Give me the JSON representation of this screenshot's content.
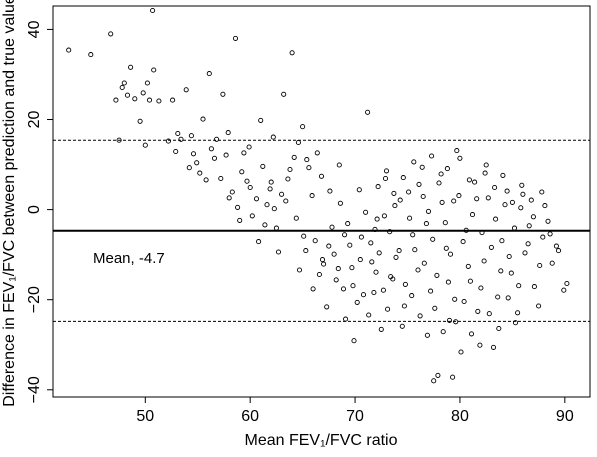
{
  "chart_data": {
    "type": "scatter",
    "title": "",
    "xlabel": "Mean FEV₁/FVC ratio",
    "ylabel": "Difference in FEV₁/FVC between prediction and true value",
    "xlim": [
      41.2,
      92.4
    ],
    "ylim": [
      -41.6,
      45.2
    ],
    "x_ticks": [
      "50",
      "60",
      "70",
      "80",
      "90"
    ],
    "y_ticks": [
      "40",
      "20",
      "0",
      "−20",
      "−40"
    ],
    "x_tick_values": [
      50,
      60,
      70,
      80,
      90
    ],
    "y_tick_values": [
      40,
      20,
      0,
      -20,
      -40
    ],
    "reference_lines": [
      {
        "y": -4.7,
        "style": "solid",
        "label": "Mean, -4.7"
      },
      {
        "y": 15.4,
        "style": "dashed"
      },
      {
        "y": -24.8,
        "style": "dashed"
      }
    ],
    "grid": false,
    "legend": "none",
    "marker": "open-circle",
    "colors": {
      "points": "#000000",
      "lines": "#000000",
      "background": "#ffffff"
    },
    "points": [
      {
        "x": 42.7,
        "y": 35.4
      },
      {
        "x": 44.8,
        "y": 34.4
      },
      {
        "x": 46.7,
        "y": 39.0
      },
      {
        "x": 47.2,
        "y": 24.3
      },
      {
        "x": 47.5,
        "y": 15.4
      },
      {
        "x": 47.8,
        "y": 27.1
      },
      {
        "x": 48.0,
        "y": 28.1
      },
      {
        "x": 48.3,
        "y": 25.4
      },
      {
        "x": 48.6,
        "y": 31.6
      },
      {
        "x": 49.0,
        "y": 24.6
      },
      {
        "x": 49.5,
        "y": 19.6
      },
      {
        "x": 49.8,
        "y": 25.9
      },
      {
        "x": 50.0,
        "y": 14.3
      },
      {
        "x": 50.2,
        "y": 28.1
      },
      {
        "x": 50.4,
        "y": 24.3
      },
      {
        "x": 50.7,
        "y": 44.2
      },
      {
        "x": 50.8,
        "y": 31.0
      },
      {
        "x": 51.3,
        "y": 24.1
      },
      {
        "x": 52.2,
        "y": 15.2
      },
      {
        "x": 52.6,
        "y": 24.3
      },
      {
        "x": 53.1,
        "y": 16.9
      },
      {
        "x": 53.4,
        "y": 15.6
      },
      {
        "x": 53.9,
        "y": 26.6
      },
      {
        "x": 54.2,
        "y": 9.3
      },
      {
        "x": 54.6,
        "y": 12.4
      },
      {
        "x": 54.9,
        "y": 10.4
      },
      {
        "x": 55.5,
        "y": 20.1
      },
      {
        "x": 55.8,
        "y": 6.6
      },
      {
        "x": 56.1,
        "y": 30.2
      },
      {
        "x": 56.3,
        "y": 13.5
      },
      {
        "x": 56.8,
        "y": 15.6
      },
      {
        "x": 57.4,
        "y": 25.6
      },
      {
        "x": 57.7,
        "y": 12.1
      },
      {
        "x": 58.3,
        "y": 3.9
      },
      {
        "x": 58.6,
        "y": 38.0
      },
      {
        "x": 58.8,
        "y": 0.5
      },
      {
        "x": 59.0,
        "y": -2.4
      },
      {
        "x": 59.4,
        "y": 12.6
      },
      {
        "x": 59.7,
        "y": 6.3
      },
      {
        "x": 60.2,
        "y": -1.4
      },
      {
        "x": 60.6,
        "y": 2.4
      },
      {
        "x": 61.0,
        "y": 19.8
      },
      {
        "x": 61.4,
        "y": -3.4
      },
      {
        "x": 61.9,
        "y": 4.6
      },
      {
        "x": 62.3,
        "y": 0.2
      },
      {
        "x": 62.7,
        "y": -9.4
      },
      {
        "x": 63.2,
        "y": 25.6
      },
      {
        "x": 63.6,
        "y": 6.8
      },
      {
        "x": 64.0,
        "y": 34.8
      },
      {
        "x": 64.2,
        "y": 11.6
      },
      {
        "x": 64.7,
        "y": -13.4
      },
      {
        "x": 65.1,
        "y": -5.9
      },
      {
        "x": 65.6,
        "y": 9.3
      },
      {
        "x": 66.0,
        "y": -17.6
      },
      {
        "x": 66.4,
        "y": 12.6
      },
      {
        "x": 66.9,
        "y": -11.1
      },
      {
        "x": 67.3,
        "y": -21.6
      },
      {
        "x": 67.8,
        "y": -3.9
      },
      {
        "x": 68.2,
        "y": -15.6
      },
      {
        "x": 68.6,
        "y": 1.4
      },
      {
        "x": 69.1,
        "y": -24.3
      },
      {
        "x": 69.5,
        "y": -7.9
      },
      {
        "x": 69.9,
        "y": -29.1
      },
      {
        "x": 70.4,
        "y": 4.4
      },
      {
        "x": 70.8,
        "y": -18.9
      },
      {
        "x": 71.2,
        "y": 21.6
      },
      {
        "x": 71.6,
        "y": -11.6
      },
      {
        "x": 72.1,
        "y": -2.1
      },
      {
        "x": 72.5,
        "y": -26.6
      },
      {
        "x": 72.9,
        "y": 6.9
      },
      {
        "x": 73.4,
        "y": -14.9
      },
      {
        "x": 73.8,
        "y": 0.9
      },
      {
        "x": 74.2,
        "y": -9.1
      },
      {
        "x": 74.7,
        "y": -21.4
      },
      {
        "x": 75.1,
        "y": 3.9
      },
      {
        "x": 75.5,
        "y": -5.6
      },
      {
        "x": 76.0,
        "y": -13.4
      },
      {
        "x": 76.4,
        "y": 9.4
      },
      {
        "x": 76.8,
        "y": -3.1
      },
      {
        "x": 77.2,
        "y": -18.1
      },
      {
        "x": 77.5,
        "y": -38.0
      },
      {
        "x": 77.9,
        "y": -36.8
      },
      {
        "x": 78.3,
        "y": 1.6
      },
      {
        "x": 78.7,
        "y": -8.6
      },
      {
        "x": 79.0,
        "y": -24.6
      },
      {
        "x": 79.3,
        "y": -37.2
      },
      {
        "x": 79.7,
        "y": 13.1
      },
      {
        "x": 80.1,
        "y": -31.6
      },
      {
        "x": 80.6,
        "y": -4.6
      },
      {
        "x": 81.0,
        "y": -15.9
      },
      {
        "x": 81.4,
        "y": 6.1
      },
      {
        "x": 81.9,
        "y": -30.1
      },
      {
        "x": 82.3,
        "y": -11.4
      },
      {
        "x": 82.7,
        "y": 2.6
      },
      {
        "x": 83.2,
        "y": -30.6
      },
      {
        "x": 83.6,
        "y": -19.4
      },
      {
        "x": 84.0,
        "y": -6.9
      },
      {
        "x": 84.5,
        "y": 4.1
      },
      {
        "x": 84.9,
        "y": -14.1
      },
      {
        "x": 85.3,
        "y": -25.1
      },
      {
        "x": 85.8,
        "y": 0.4
      },
      {
        "x": 86.2,
        "y": -9.6
      },
      {
        "x": 86.6,
        "y": -3.6
      },
      {
        "x": 87.1,
        "y": -17.1
      },
      {
        "x": 87.5,
        "y": -21.4
      },
      {
        "x": 87.9,
        "y": -6.1
      },
      {
        "x": 88.4,
        "y": -2.6
      },
      {
        "x": 88.8,
        "y": -11.9
      },
      {
        "x": 89.2,
        "y": -8.1
      },
      {
        "x": 89.9,
        "y": -17.9
      },
      {
        "x": 90.2,
        "y": -16.4
      },
      {
        "x": 71.0,
        "y": -0.6
      },
      {
        "x": 71.5,
        "y": -7.4
      },
      {
        "x": 72.0,
        "y": -13.9
      },
      {
        "x": 72.8,
        "y": -1.4
      },
      {
        "x": 73.3,
        "y": -4.9
      },
      {
        "x": 73.9,
        "y": -10.6
      },
      {
        "x": 74.3,
        "y": 2.1
      },
      {
        "x": 74.8,
        "y": -16.6
      },
      {
        "x": 75.2,
        "y": -1.9
      },
      {
        "x": 75.7,
        "y": -8.9
      },
      {
        "x": 76.1,
        "y": 5.6
      },
      {
        "x": 76.6,
        "y": -11.9
      },
      {
        "x": 77.0,
        "y": -0.4
      },
      {
        "x": 77.4,
        "y": -6.6
      },
      {
        "x": 77.8,
        "y": -14.6
      },
      {
        "x": 78.2,
        "y": 7.9
      },
      {
        "x": 78.6,
        "y": -2.9
      },
      {
        "x": 79.1,
        "y": -9.9
      },
      {
        "x": 79.5,
        "y": -19.9
      },
      {
        "x": 79.9,
        "y": 3.1
      },
      {
        "x": 80.3,
        "y": -7.1
      },
      {
        "x": 80.8,
        "y": -12.6
      },
      {
        "x": 81.2,
        "y": -1.1
      },
      {
        "x": 81.7,
        "y": -22.6
      },
      {
        "x": 82.1,
        "y": -5.1
      },
      {
        "x": 82.5,
        "y": 9.9
      },
      {
        "x": 83.0,
        "y": -8.4
      },
      {
        "x": 83.4,
        "y": -2.1
      },
      {
        "x": 83.9,
        "y": -13.6
      },
      {
        "x": 84.3,
        "y": 1.1
      },
      {
        "x": 84.7,
        "y": -10.4
      },
      {
        "x": 85.2,
        "y": -4.1
      },
      {
        "x": 85.6,
        "y": -16.9
      },
      {
        "x": 86.0,
        "y": 3.4
      },
      {
        "x": 86.5,
        "y": -7.6
      },
      {
        "x": 87.0,
        "y": -1.6
      },
      {
        "x": 87.6,
        "y": -12.4
      },
      {
        "x": 88.1,
        "y": 0.9
      },
      {
        "x": 88.6,
        "y": -5.4
      },
      {
        "x": 89.4,
        "y": -9.1
      },
      {
        "x": 66.2,
        "y": -6.9
      },
      {
        "x": 67.0,
        "y": -12.1
      },
      {
        "x": 67.6,
        "y": 4.1
      },
      {
        "x": 68.0,
        "y": -9.9
      },
      {
        "x": 68.9,
        "y": -17.6
      },
      {
        "x": 69.3,
        "y": -3.1
      },
      {
        "x": 69.7,
        "y": -12.9
      },
      {
        "x": 70.2,
        "y": -20.6
      },
      {
        "x": 70.6,
        "y": -6.1
      },
      {
        "x": 71.8,
        "y": -18.4
      },
      {
        "x": 72.3,
        "y": -9.6
      },
      {
        "x": 73.1,
        "y": -22.1
      },
      {
        "x": 73.6,
        "y": -15.4
      },
      {
        "x": 74.5,
        "y": -25.9
      },
      {
        "x": 75.4,
        "y": -19.1
      },
      {
        "x": 76.2,
        "y": -23.6
      },
      {
        "x": 76.9,
        "y": -27.9
      },
      {
        "x": 77.6,
        "y": -21.9
      },
      {
        "x": 78.4,
        "y": -27.1
      },
      {
        "x": 78.9,
        "y": -16.1
      },
      {
        "x": 79.6,
        "y": -24.9
      },
      {
        "x": 80.4,
        "y": -20.4
      },
      {
        "x": 81.1,
        "y": -27.6
      },
      {
        "x": 82.0,
        "y": -17.4
      },
      {
        "x": 82.8,
        "y": -23.1
      },
      {
        "x": 83.7,
        "y": -26.4
      },
      {
        "x": 84.6,
        "y": -19.6
      },
      {
        "x": 85.5,
        "y": -22.9
      },
      {
        "x": 72.2,
        "y": 5.1
      },
      {
        "x": 73.0,
        "y": 8.6
      },
      {
        "x": 73.7,
        "y": 3.6
      },
      {
        "x": 74.6,
        "y": 7.1
      },
      {
        "x": 75.6,
        "y": 10.6
      },
      {
        "x": 76.5,
        "y": 2.9
      },
      {
        "x": 77.3,
        "y": 11.9
      },
      {
        "x": 78.0,
        "y": 5.9
      },
      {
        "x": 78.8,
        "y": 9.1
      },
      {
        "x": 79.4,
        "y": 1.9
      },
      {
        "x": 80.0,
        "y": 11.4
      },
      {
        "x": 80.9,
        "y": 6.6
      },
      {
        "x": 81.6,
        "y": 2.4
      },
      {
        "x": 82.4,
        "y": 8.1
      },
      {
        "x": 83.3,
        "y": 4.9
      },
      {
        "x": 84.1,
        "y": 7.6
      },
      {
        "x": 85.0,
        "y": 1.6
      },
      {
        "x": 85.9,
        "y": 5.4
      },
      {
        "x": 86.8,
        "y": 2.1
      },
      {
        "x": 87.8,
        "y": 3.9
      },
      {
        "x": 60.8,
        "y": -7.1
      },
      {
        "x": 61.6,
        "y": 1.1
      },
      {
        "x": 62.5,
        "y": -4.1
      },
      {
        "x": 63.4,
        "y": 1.9
      },
      {
        "x": 64.4,
        "y": -1.9
      },
      {
        "x": 65.3,
        "y": -9.1
      },
      {
        "x": 65.9,
        "y": 3.1
      },
      {
        "x": 66.6,
        "y": -14.4
      },
      {
        "x": 67.5,
        "y": -8.1
      },
      {
        "x": 68.4,
        "y": -13.1
      },
      {
        "x": 69.0,
        "y": -5.6
      },
      {
        "x": 69.8,
        "y": -16.9
      },
      {
        "x": 70.5,
        "y": -11.1
      },
      {
        "x": 71.3,
        "y": -23.4
      },
      {
        "x": 71.9,
        "y": -4.4
      },
      {
        "x": 72.7,
        "y": -17.9
      },
      {
        "x": 57.2,
        "y": 6.9
      },
      {
        "x": 58.0,
        "y": 2.6
      },
      {
        "x": 59.2,
        "y": 8.4
      },
      {
        "x": 60.0,
        "y": 4.9
      },
      {
        "x": 61.2,
        "y": 9.6
      },
      {
        "x": 62.0,
        "y": 6.1
      },
      {
        "x": 63.0,
        "y": 3.4
      },
      {
        "x": 63.8,
        "y": 8.9
      },
      {
        "x": 64.6,
        "y": 14.9
      },
      {
        "x": 65.4,
        "y": 11.1
      },
      {
        "x": 66.8,
        "y": 7.4
      },
      {
        "x": 68.5,
        "y": 9.9
      },
      {
        "x": 52.9,
        "y": 12.9
      },
      {
        "x": 54.4,
        "y": 16.4
      },
      {
        "x": 55.2,
        "y": 8.1
      },
      {
        "x": 56.6,
        "y": 11.4
      },
      {
        "x": 57.9,
        "y": 17.1
      },
      {
        "x": 59.9,
        "y": 13.9
      },
      {
        "x": 62.2,
        "y": 16.1
      },
      {
        "x": 65.0,
        "y": 18.4
      }
    ]
  }
}
